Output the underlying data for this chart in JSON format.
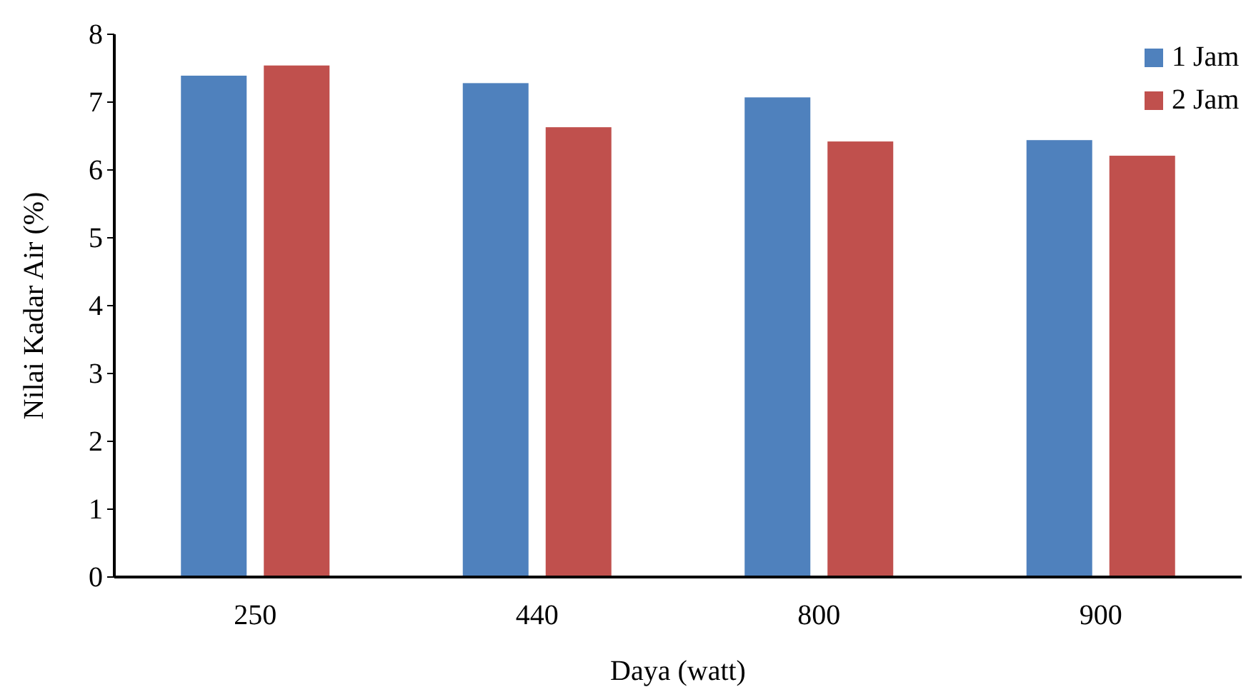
{
  "chart_data": {
    "type": "bar",
    "xlabel": "Daya (watt)",
    "ylabel": "Nilai Kadar Air (%)",
    "categories": [
      "250",
      "440",
      "800",
      "900"
    ],
    "series": [
      {
        "name": "1 Jam",
        "color": "#4f81bd",
        "values": [
          7.39,
          7.28,
          7.07,
          6.44
        ]
      },
      {
        "name": "2 Jam",
        "color": "#c0504d",
        "values": [
          7.54,
          6.63,
          6.42,
          6.21
        ]
      }
    ],
    "ylim": [
      0,
      8
    ],
    "yticks": [
      0,
      1,
      2,
      3,
      4,
      5,
      6,
      7,
      8
    ],
    "grid": false,
    "legend": "top right"
  }
}
